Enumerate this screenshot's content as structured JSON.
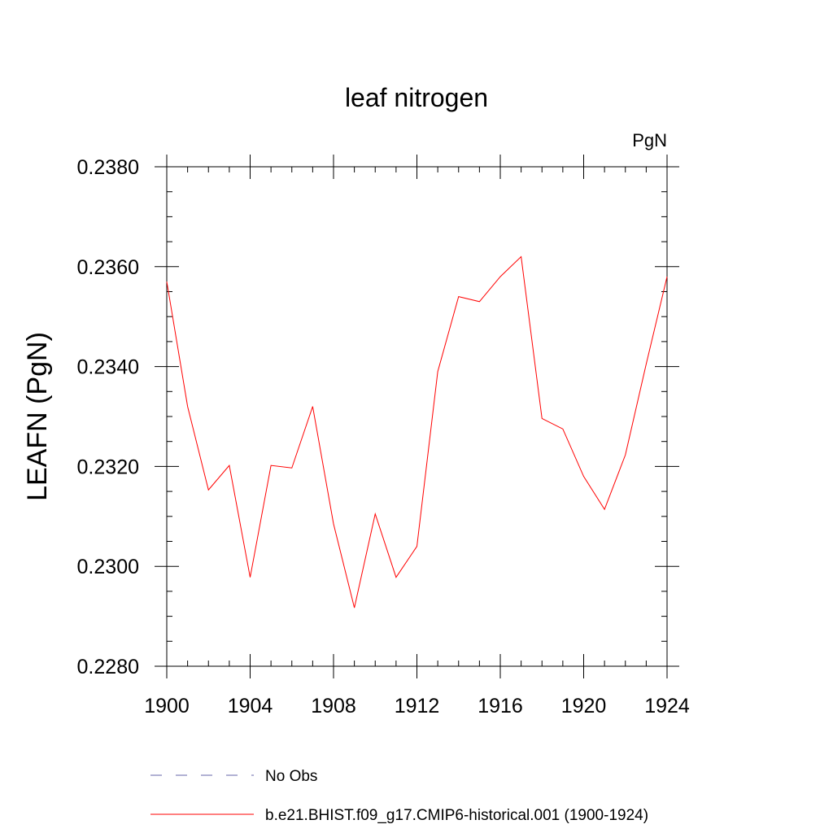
{
  "chart_data": {
    "type": "line",
    "title": "leaf nitrogen",
    "units": "PgN",
    "xlabel": "",
    "ylabel": "LEAFN  (PgN)",
    "xlim": [
      1900,
      1924
    ],
    "ylim": [
      0.228,
      0.238
    ],
    "x_ticks": [
      1900,
      1904,
      1908,
      1912,
      1916,
      1920,
      1924
    ],
    "x_tick_labels": [
      "1900",
      "1904",
      "1908",
      "1912",
      "1916",
      "1920",
      "1924"
    ],
    "y_ticks": [
      0.228,
      0.23,
      0.232,
      0.234,
      0.236,
      0.238
    ],
    "y_tick_labels": [
      "0.2280",
      "0.2300",
      "0.2320",
      "0.2340",
      "0.2360",
      "0.2380"
    ],
    "grid": false,
    "legend_position": "bottom-left",
    "series": [
      {
        "name": "b.e21.BHIST.f09_g17.CMIP6-historical.001 (1900-1924)",
        "color": "#ff0000",
        "style": "solid",
        "x": [
          1900,
          1901,
          1902,
          1903,
          1904,
          1905,
          1906,
          1907,
          1908,
          1909,
          1910,
          1911,
          1912,
          1913,
          1914,
          1915,
          1916,
          1917,
          1918,
          1919,
          1920,
          1921,
          1922,
          1923,
          1924
        ],
        "values": [
          0.2357,
          0.2332,
          0.23153,
          0.23202,
          0.22978,
          0.23202,
          0.23197,
          0.2332,
          0.23085,
          0.22917,
          0.23105,
          0.22978,
          0.2304,
          0.2339,
          0.2354,
          0.2353,
          0.2358,
          0.2362,
          0.23296,
          0.23275,
          0.2318,
          0.23114,
          0.23223,
          0.23405,
          0.2358
        ]
      }
    ],
    "legend": [
      {
        "label": "No Obs",
        "color": "#6666aa",
        "style": "dashed"
      },
      {
        "label": "b.e21.BHIST.f09_g17.CMIP6-historical.001 (1900-1924)",
        "color": "#ff0000",
        "style": "solid"
      }
    ]
  }
}
